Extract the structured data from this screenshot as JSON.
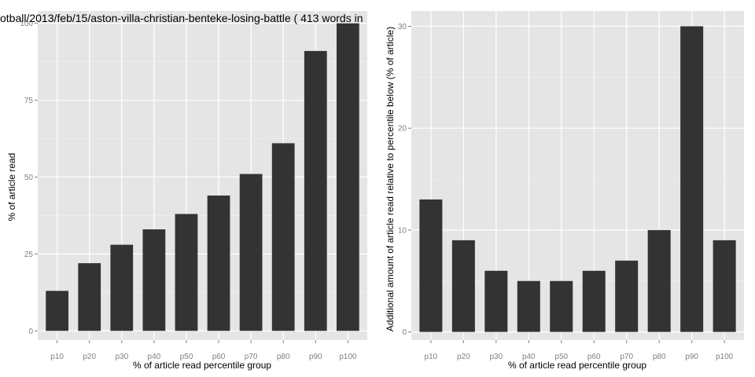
{
  "chart_data": [
    {
      "type": "bar",
      "title": "otball/2013/feb/15/aston-villa-christian-benteke-losing-battle ( 413 words in",
      "xlabel": "% of article read percentile group",
      "ylabel": "% of article read",
      "categories": [
        "p10",
        "p20",
        "p30",
        "p40",
        "p50",
        "p60",
        "p70",
        "p80",
        "p90",
        "p100"
      ],
      "values": [
        13,
        22,
        28,
        33,
        38,
        44,
        51,
        61,
        91,
        100
      ],
      "ylim": [
        -3,
        104
      ],
      "yticks": [
        0,
        25,
        50,
        75,
        100
      ],
      "grid": true,
      "colors": {
        "panel": "#e5e5e5",
        "bar": "#333333",
        "grid_major": "#ffffff",
        "grid_minor": "#f2f2f2"
      }
    },
    {
      "type": "bar",
      "title": "",
      "xlabel": "% of article read percentile group",
      "ylabel": "Additional amount of article read relative to percentile below (% of article)",
      "categories": [
        "p10",
        "p20",
        "p30",
        "p40",
        "p50",
        "p60",
        "p70",
        "p80",
        "p90",
        "p100"
      ],
      "values": [
        13,
        9,
        6,
        5,
        5,
        6,
        7,
        10,
        30,
        9
      ],
      "ylim": [
        -0.8,
        31.5
      ],
      "yticks": [
        0,
        10,
        20,
        30
      ],
      "grid": true,
      "colors": {
        "panel": "#e5e5e5",
        "bar": "#333333",
        "grid_major": "#ffffff",
        "grid_minor": "#f2f2f2"
      }
    }
  ]
}
